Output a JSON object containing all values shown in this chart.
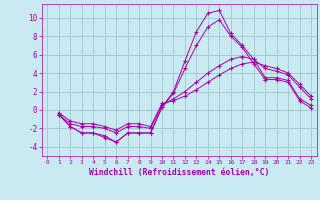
{
  "bg_color": "#c8eaf0",
  "grid_color": "#9bbfcc",
  "line_color": "#aa00aa",
  "marker": "+",
  "xlabel": "Windchill (Refroidissement éolien,°C)",
  "xlabel_color": "#aa00aa",
  "tick_color": "#aa00aa",
  "ylim": [
    -5,
    11.5
  ],
  "xlim": [
    -0.5,
    23.5
  ],
  "yticks": [
    -4,
    -2,
    0,
    2,
    4,
    6,
    8,
    10
  ],
  "xticks": [
    0,
    1,
    2,
    3,
    4,
    5,
    6,
    7,
    8,
    9,
    10,
    11,
    12,
    13,
    14,
    15,
    16,
    17,
    18,
    19,
    20,
    21,
    22,
    23
  ],
  "series": [
    [
      null,
      -0.5,
      -1.8,
      -2.5,
      -2.5,
      -3.0,
      -3.5,
      -2.5,
      -2.5,
      -2.5,
      0.3,
      2.0,
      5.3,
      8.5,
      10.5,
      10.8,
      8.3,
      7.0,
      5.5,
      3.5,
      3.5,
      3.2,
      1.2,
      0.5
    ],
    [
      null,
      -0.5,
      -1.8,
      -2.5,
      -2.5,
      -2.8,
      -3.5,
      -2.5,
      -2.5,
      -2.5,
      0.3,
      1.8,
      4.5,
      7.0,
      9.0,
      9.8,
      8.0,
      6.8,
      5.0,
      3.3,
      3.3,
      3.0,
      1.0,
      0.2
    ],
    [
      null,
      -0.5,
      -1.5,
      -1.8,
      -1.8,
      -2.0,
      -2.5,
      -1.8,
      -1.8,
      -2.0,
      0.5,
      1.2,
      2.0,
      3.0,
      4.0,
      4.8,
      5.5,
      5.8,
      5.5,
      4.5,
      4.2,
      3.8,
      2.5,
      1.2
    ],
    [
      null,
      -0.3,
      -1.2,
      -1.5,
      -1.5,
      -1.8,
      -2.2,
      -1.5,
      -1.5,
      -1.8,
      0.7,
      1.0,
      1.5,
      2.2,
      3.0,
      3.8,
      4.5,
      5.0,
      5.2,
      4.8,
      4.5,
      4.0,
      2.8,
      1.5
    ]
  ]
}
